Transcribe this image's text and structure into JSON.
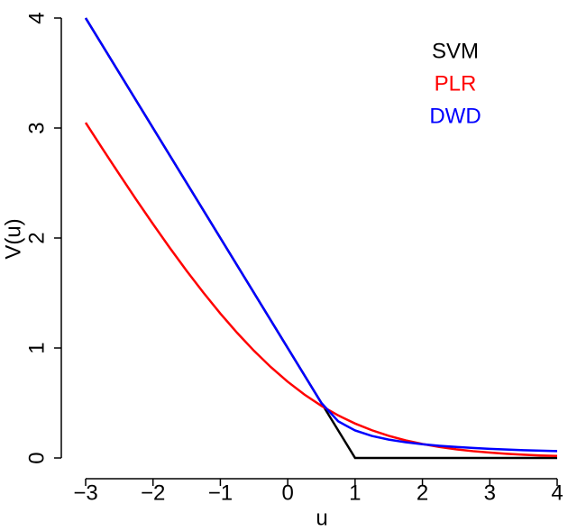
{
  "chart_data": {
    "type": "line",
    "xlabel": "u",
    "ylabel": "V(u)",
    "x": [
      -3,
      -2.75,
      -2.5,
      -2.25,
      -2,
      -1.75,
      -1.5,
      -1.25,
      -1,
      -0.75,
      -0.5,
      -0.25,
      0,
      0.25,
      0.5,
      0.75,
      1,
      1.25,
      1.5,
      1.75,
      2,
      2.25,
      2.5,
      2.75,
      3,
      3.25,
      3.5,
      3.75,
      4
    ],
    "series": [
      {
        "name": "SVM",
        "color": "#000000",
        "values": [
          4,
          3.75,
          3.5,
          3.25,
          3,
          2.75,
          2.5,
          2.25,
          2,
          1.75,
          1.5,
          1.25,
          1,
          0.75,
          0.5,
          0.25,
          0,
          0,
          0,
          0,
          0,
          0,
          0,
          0,
          0,
          0,
          0,
          0,
          0
        ]
      },
      {
        "name": "PLR",
        "color": "#ff0000",
        "values": [
          3.049,
          2.812,
          2.579,
          2.35,
          2.127,
          1.91,
          1.701,
          1.502,
          1.313,
          1.137,
          0.974,
          0.826,
          0.693,
          0.576,
          0.474,
          0.387,
          0.313,
          0.252,
          0.201,
          0.16,
          0.127,
          0.1,
          0.079,
          0.062,
          0.049,
          0.038,
          0.03,
          0.023,
          0.018
        ]
      },
      {
        "name": "DWD",
        "color": "#0000ff",
        "values": [
          4,
          3.75,
          3.5,
          3.25,
          3,
          2.75,
          2.5,
          2.25,
          2,
          1.75,
          1.5,
          1.25,
          1,
          0.75,
          0.5,
          0.333,
          0.25,
          0.2,
          0.167,
          0.143,
          0.125,
          0.111,
          0.1,
          0.091,
          0.083,
          0.077,
          0.071,
          0.067,
          0.0625
        ]
      }
    ],
    "xlim": [
      -3,
      4
    ],
    "xticks": [
      {
        "value": -3,
        "label": "−3"
      },
      {
        "value": -2,
        "label": "−2"
      },
      {
        "value": -1,
        "label": "−1"
      },
      0,
      1,
      2,
      3,
      4
    ],
    "ylim": [
      0,
      4
    ],
    "yticks": [
      0,
      1,
      2,
      3,
      4
    ],
    "legend": "topright"
  }
}
